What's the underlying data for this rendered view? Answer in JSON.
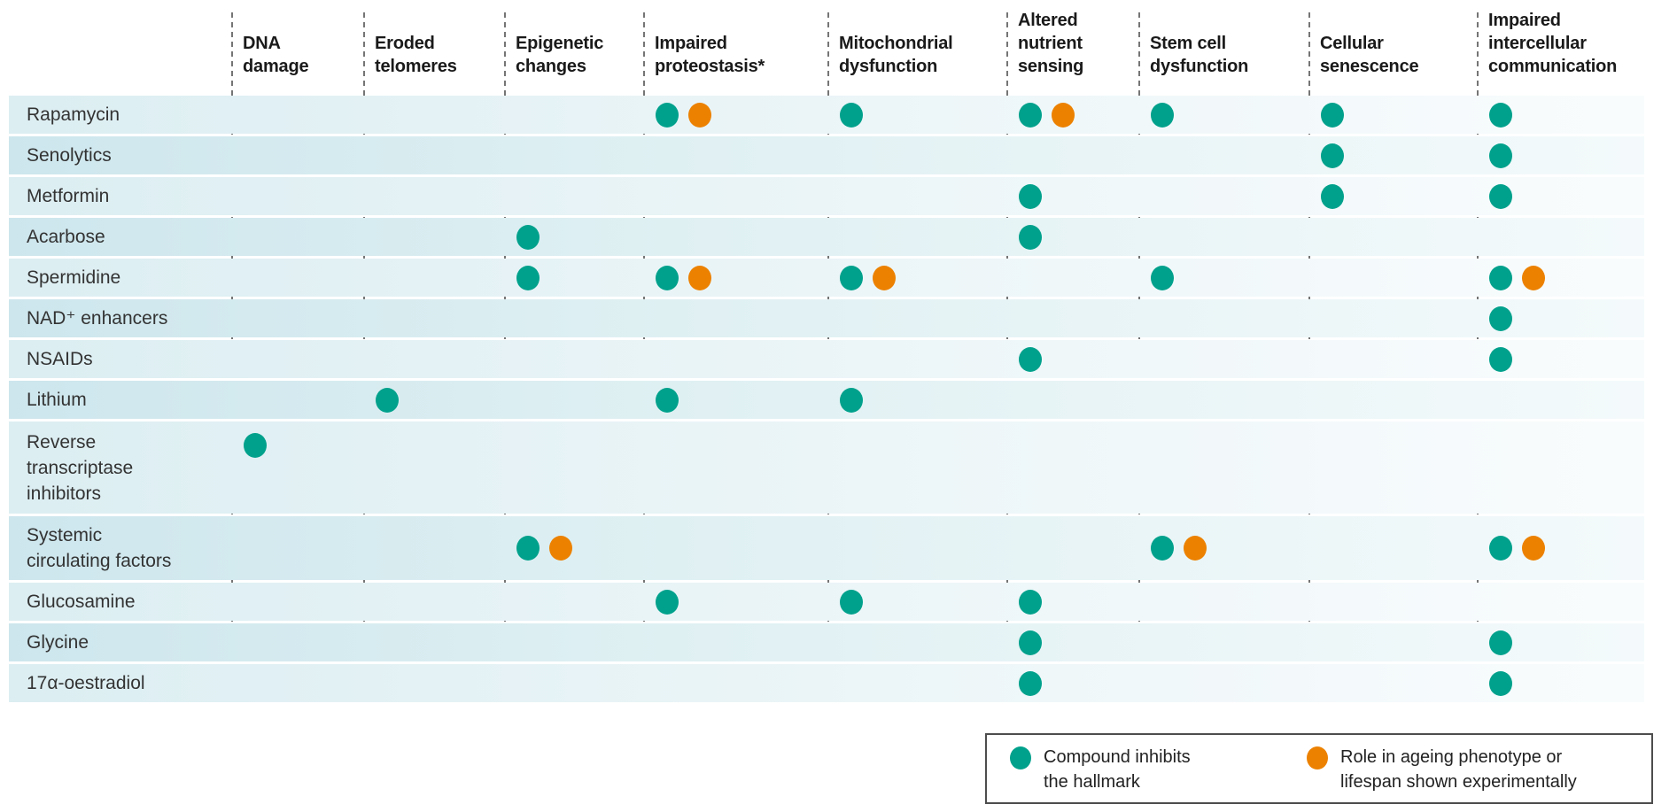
{
  "palette": {
    "teal": "#00A18C",
    "orange": "#EC8100",
    "row_tint_strong": "#CDE6ED",
    "row_tint_light": "#DCEEF2",
    "gridline_gray": "#757575",
    "header_text": "#1A1A1A",
    "label_text": "#333333",
    "legend_border": "#4D4D4D"
  },
  "chart_data": {
    "type": "table",
    "title": "",
    "columns": [
      "DNA\ndamage",
      "Eroded\ntelomeres",
      "Epigenetic\nchanges",
      "Impaired\nproteostasis*",
      "Mitochondrial\ndysfunction",
      "Altered\nnutrient\nsensing",
      "Stem cell\ndysfunction",
      "Cellular\nsenescence",
      "Impaired\nintercellular\ncommunication"
    ],
    "marker_meanings": {
      "teal": "Compound inhibits the hallmark",
      "orange": "Role in ageing phenotype or lifespan shown experimentally"
    },
    "rows": [
      {
        "label": "Rapamycin",
        "cells": [
          [],
          [],
          [],
          [
            "teal",
            "orange"
          ],
          [
            "teal"
          ],
          [
            "teal",
            "orange"
          ],
          [
            "teal"
          ],
          [
            "teal"
          ],
          [
            "teal"
          ]
        ]
      },
      {
        "label": "Senolytics",
        "cells": [
          [],
          [],
          [],
          [],
          [],
          [],
          [],
          [
            "teal"
          ],
          [
            "teal"
          ]
        ]
      },
      {
        "label": "Metformin",
        "cells": [
          [],
          [],
          [],
          [],
          [],
          [
            "teal"
          ],
          [],
          [
            "teal"
          ],
          [
            "teal"
          ]
        ]
      },
      {
        "label": "Acarbose",
        "cells": [
          [],
          [],
          [
            "teal"
          ],
          [],
          [],
          [
            "teal"
          ],
          [],
          [],
          []
        ]
      },
      {
        "label": "Spermidine",
        "cells": [
          [],
          [],
          [
            "teal"
          ],
          [
            "teal",
            "orange"
          ],
          [
            "teal",
            "orange"
          ],
          [],
          [
            "teal"
          ],
          [],
          [
            "teal",
            "orange"
          ]
        ]
      },
      {
        "label": "NAD⁺ enhancers",
        "cells": [
          [],
          [],
          [],
          [],
          [],
          [],
          [],
          [],
          [
            "teal"
          ]
        ]
      },
      {
        "label": "NSAIDs",
        "cells": [
          [],
          [],
          [],
          [],
          [],
          [
            "teal"
          ],
          [],
          [],
          [
            "teal"
          ]
        ]
      },
      {
        "label": "Lithium",
        "cells": [
          [],
          [
            "teal"
          ],
          [],
          [
            "teal"
          ],
          [
            "teal"
          ],
          [],
          [],
          [],
          []
        ]
      },
      {
        "label": "Reverse\ntranscriptase\ninhibitors",
        "cells": [
          [
            "teal"
          ],
          [],
          [],
          [],
          [],
          [],
          [],
          [],
          []
        ]
      },
      {
        "label": "Systemic\ncirculating factors",
        "cells": [
          [],
          [],
          [
            "teal",
            "orange"
          ],
          [],
          [],
          [],
          [
            "teal",
            "orange"
          ],
          [],
          [
            "teal",
            "orange"
          ]
        ]
      },
      {
        "label": "Glucosamine",
        "cells": [
          [],
          [],
          [],
          [
            "teal"
          ],
          [
            "teal"
          ],
          [
            "teal"
          ],
          [],
          [],
          []
        ]
      },
      {
        "label": "Glycine",
        "cells": [
          [],
          [],
          [],
          [],
          [],
          [
            "teal"
          ],
          [],
          [],
          [
            "teal"
          ]
        ]
      },
      {
        "label": "17α-oestradiol",
        "cells": [
          [],
          [],
          [],
          [],
          [],
          [
            "teal"
          ],
          [],
          [],
          [
            "teal"
          ]
        ]
      }
    ],
    "legend": [
      {
        "color_key": "teal",
        "label": "Compound inhibits\nthe hallmark"
      },
      {
        "color_key": "orange",
        "label": "Role in ageing phenotype or\nlifespan shown experimentally"
      }
    ],
    "legend_position": "bottom-right",
    "grid": "dashed-vertical-separators"
  }
}
